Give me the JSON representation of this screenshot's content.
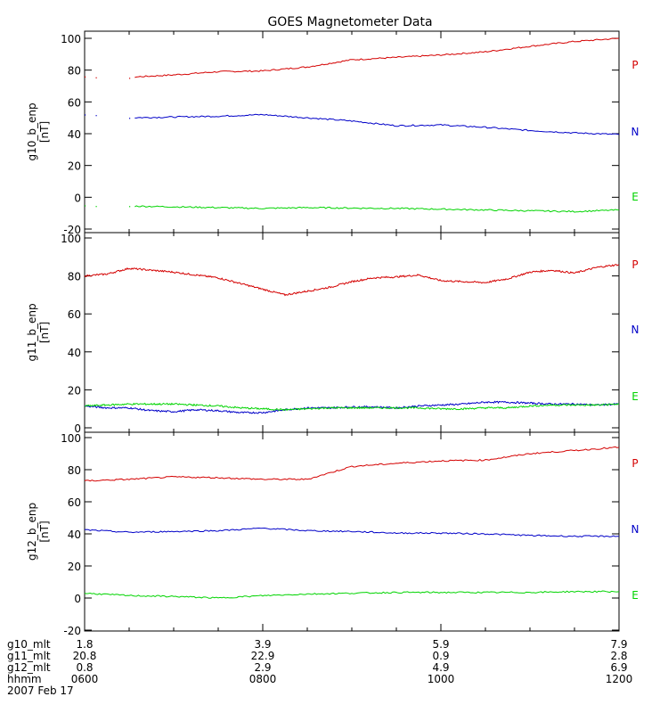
{
  "title": "GOES Magnetometer Data",
  "colors": {
    "P": "#d40000",
    "N": "#0000c8",
    "E": "#00d400",
    "axis": "#000000",
    "background": "#ffffff"
  },
  "x_axis": {
    "hhmm": [
      "0600",
      "0800",
      "1000",
      "1200"
    ],
    "date": "2007 Feb 17",
    "rows": [
      {
        "label": "g10_mlt",
        "values": [
          "1.8",
          "3.9",
          "5.9",
          "7.9"
        ]
      },
      {
        "label": "g11_mlt",
        "values": [
          "20.8",
          "22.9",
          "0.9",
          "2.8"
        ]
      },
      {
        "label": "g12_mlt",
        "values": [
          "0.8",
          "2.9",
          "4.9",
          "6.9"
        ]
      },
      {
        "label": "hhmm",
        "values": [
          "0600",
          "0800",
          "1000",
          "1200"
        ]
      }
    ]
  },
  "chart_data": [
    {
      "type": "line",
      "ylabel": "g10_b_enp",
      "yunit": "[nT]",
      "ylim": [
        -20,
        100
      ],
      "yticks": [
        -20,
        0,
        20,
        40,
        60,
        80,
        100
      ],
      "x_hours": [
        6.0,
        6.5,
        7.0,
        7.5,
        8.0,
        8.5,
        9.0,
        9.5,
        10.0,
        10.5,
        11.0,
        11.5,
        12.0
      ],
      "gap_before_hour": 6.55,
      "series": [
        {
          "name": "P",
          "values": [
            76,
            75.5,
            77,
            79,
            79.5,
            82,
            86.5,
            88,
            89.5,
            91.5,
            95,
            98,
            100
          ]
        },
        {
          "name": "N",
          "values": [
            52,
            50,
            50.5,
            51,
            52,
            50,
            48,
            45,
            45.5,
            44,
            42,
            40.5,
            39.5
          ]
        },
        {
          "name": "E",
          "values": [
            -5,
            -5.5,
            -6,
            -6.5,
            -7,
            -6.5,
            -6.8,
            -7,
            -7.5,
            -8,
            -8.5,
            -9,
            -8
          ]
        }
      ]
    },
    {
      "type": "line",
      "ylabel": "g11_b_enp",
      "yunit": "[nT]",
      "ylim": [
        0,
        100
      ],
      "yticks": [
        0,
        20,
        40,
        60,
        80,
        100
      ],
      "x_hours": [
        6.0,
        6.25,
        6.5,
        6.75,
        7.0,
        7.25,
        7.5,
        7.75,
        8.0,
        8.25,
        8.5,
        8.75,
        9.0,
        9.25,
        9.5,
        9.75,
        10.0,
        10.25,
        10.5,
        10.75,
        11.0,
        11.25,
        11.5,
        11.75,
        12.0
      ],
      "series": [
        {
          "name": "P",
          "values": [
            80,
            81,
            84,
            83,
            82,
            80.5,
            79,
            76,
            73,
            70,
            72,
            74,
            77,
            79,
            79.5,
            80.5,
            77.5,
            77,
            76.5,
            78.5,
            82,
            83,
            81.5,
            84.5,
            86
          ]
        },
        {
          "name": "N",
          "values": [
            11.5,
            10.5,
            10.5,
            9,
            8.5,
            9.5,
            9,
            8,
            8,
            9.5,
            10.5,
            10.5,
            11,
            11,
            10.5,
            11.5,
            12,
            12.5,
            13.5,
            13.5,
            13,
            12.5,
            12.5,
            12,
            12.5
          ]
        },
        {
          "name": "E",
          "values": [
            11.5,
            12,
            12.5,
            12.5,
            12.5,
            12,
            11.5,
            10.5,
            10,
            9.5,
            10,
            10.5,
            10.5,
            10.5,
            10.5,
            10.5,
            10,
            10,
            10.5,
            10.5,
            11.5,
            12,
            12,
            12,
            12.5
          ]
        }
      ]
    },
    {
      "type": "line",
      "ylabel": "g12_b_enp",
      "yunit": "[nT]",
      "ylim": [
        -20,
        100
      ],
      "yticks": [
        -20,
        0,
        20,
        40,
        60,
        80,
        100
      ],
      "x_hours": [
        6.0,
        6.5,
        7.0,
        7.5,
        8.0,
        8.5,
        9.0,
        9.5,
        10.0,
        10.5,
        11.0,
        11.5,
        12.0
      ],
      "series": [
        {
          "name": "P",
          "values": [
            73,
            74,
            75.5,
            75,
            74,
            74,
            82,
            84,
            85.5,
            86,
            90,
            92,
            94
          ]
        },
        {
          "name": "N",
          "values": [
            42.5,
            41,
            41.5,
            42,
            43.5,
            42,
            41.5,
            40.5,
            40.5,
            40,
            39,
            38.5,
            38.5
          ]
        },
        {
          "name": "E",
          "values": [
            3,
            1.5,
            1,
            0,
            1.5,
            2.5,
            3,
            3.5,
            3.5,
            3.5,
            3.5,
            4,
            4
          ]
        }
      ]
    }
  ]
}
